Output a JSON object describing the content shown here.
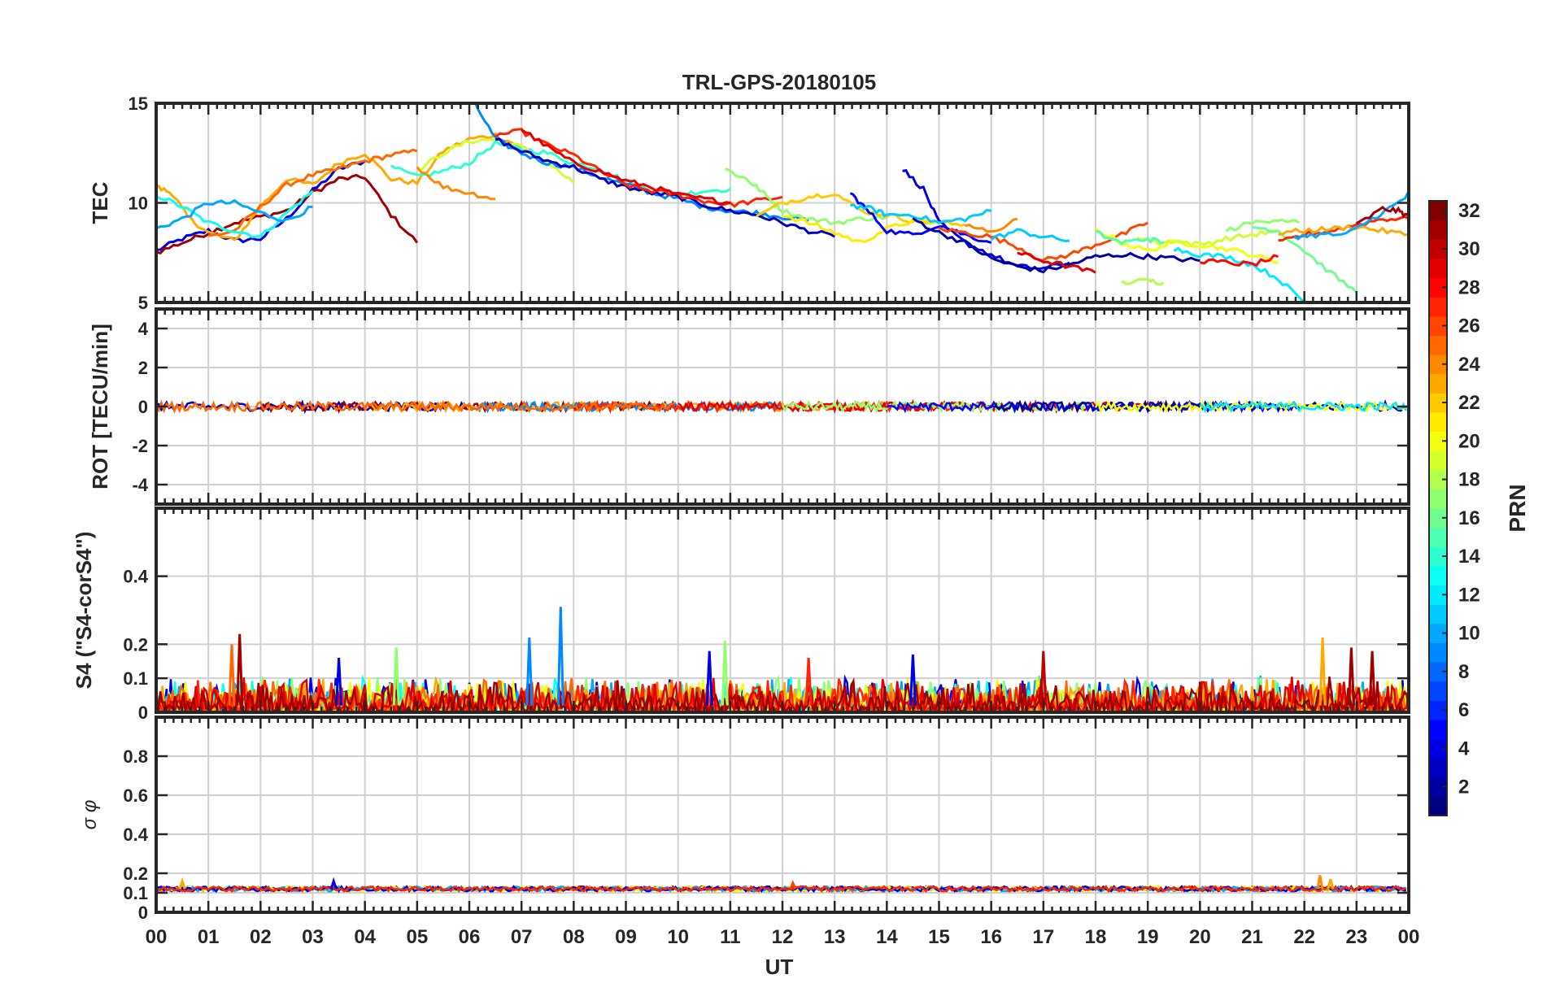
{
  "figure_title": "TRL-GPS-20180105",
  "x_axis": {
    "label": "UT",
    "range_hours": [
      0,
      24
    ],
    "tick_labels": [
      "00",
      "01",
      "02",
      "03",
      "04",
      "05",
      "06",
      "07",
      "08",
      "09",
      "10",
      "11",
      "12",
      "13",
      "14",
      "15",
      "16",
      "17",
      "18",
      "19",
      "20",
      "21",
      "22",
      "23",
      "00"
    ]
  },
  "colorbar": {
    "label": "PRN",
    "range": [
      1,
      32
    ],
    "tick_labels": [
      "2",
      "4",
      "6",
      "8",
      "10",
      "12",
      "14",
      "16",
      "18",
      "20",
      "22",
      "24",
      "26",
      "28",
      "30",
      "32"
    ],
    "colormap": "jet"
  },
  "chart_data": [
    {
      "type": "line",
      "panel": "TEC",
      "ylabel": "TEC",
      "ylim": [
        5,
        15
      ],
      "ytick_labels": [
        "5",
        "10",
        "15"
      ],
      "grid": true,
      "series": [
        {
          "color_index": 4,
          "x": [
            0,
            0.5,
            1,
            1.5,
            2,
            2.5,
            3,
            3.5,
            4
          ],
          "y": [
            7.6,
            8.2,
            8.6,
            8.1,
            8.2,
            9.2,
            10.6,
            11.7,
            12.1
          ]
        },
        {
          "color_index": 31,
          "x": [
            0,
            0.5,
            1,
            1.5,
            2,
            2.5,
            3,
            3.5,
            4,
            4.5,
            5
          ],
          "y": [
            7.5,
            8.0,
            8.5,
            9.0,
            9.3,
            9.6,
            10.5,
            11.2,
            11.3,
            9.4,
            8.0
          ]
        },
        {
          "color_index": 23,
          "x": [
            0,
            0.3,
            0.6,
            1,
            1.5,
            2,
            2.5,
            3,
            3.5,
            4,
            4.5,
            5,
            5.5,
            6,
            6.5,
            7
          ],
          "y": [
            10.8,
            10.5,
            9.3,
            8.5,
            8.1,
            9.8,
            11.2,
            10.9,
            12.0,
            12.5,
            11.2,
            11.0,
            12.6,
            13.2,
            13.4,
            12.8
          ]
        },
        {
          "color_index": 25,
          "x": [
            1,
            1.5,
            2,
            2.5,
            3,
            3.5,
            4,
            4.5,
            5
          ],
          "y": [
            8.3,
            8.6,
            9.8,
            10.9,
            11.4,
            11.7,
            12.1,
            12.4,
            12.6
          ]
        },
        {
          "color_index": 13,
          "x": [
            0,
            0.5,
            1,
            1.5,
            2,
            2.5,
            3
          ],
          "y": [
            10.4,
            9.8,
            9.0,
            8.6,
            8.3,
            9.5,
            10.6
          ]
        },
        {
          "color_index": 10,
          "x": [
            0,
            0.5,
            1,
            1.5,
            2,
            2.5,
            3
          ],
          "y": [
            8.7,
            9.2,
            10.0,
            10.0,
            9.5,
            9.1,
            9.8
          ]
        },
        {
          "color_index": 14,
          "x": [
            4.5,
            5,
            5.5,
            6,
            6.5,
            7,
            7.5,
            8,
            8.5,
            9,
            9.5,
            10,
            10.5,
            11
          ],
          "y": [
            11.8,
            11.3,
            11.6,
            12.0,
            13.0,
            12.7,
            12.5,
            12.0,
            11.7,
            11.1,
            10.6,
            10.4,
            10.6,
            10.7
          ]
        },
        {
          "color_index": 19,
          "x": [
            5,
            5.5,
            6,
            6.5,
            7,
            7.5,
            8
          ],
          "y": [
            11.6,
            12.5,
            13.1,
            13.2,
            12.8,
            12.0,
            11.0
          ]
        },
        {
          "color_index": 9,
          "x": [
            6.1,
            6.5,
            7,
            7.5,
            8,
            8.5,
            9,
            9.5,
            10,
            10.5,
            11,
            11.5,
            12,
            12.5
          ],
          "y": [
            15.0,
            13.2,
            12.5,
            12.0,
            11.8,
            11.3,
            10.9,
            10.5,
            10.2,
            9.8,
            9.6,
            9.5,
            9.3,
            9.1
          ]
        },
        {
          "color_index": 3,
          "x": [
            6.5,
            7,
            7.5,
            8,
            8.5,
            9,
            9.5,
            10,
            10.5,
            11,
            11.5,
            12,
            12.5,
            13
          ],
          "y": [
            13.2,
            12.6,
            12.1,
            11.8,
            11.2,
            10.8,
            10.5,
            10.3,
            9.9,
            9.6,
            9.4,
            9.0,
            8.6,
            8.3
          ]
        },
        {
          "color_index": 27,
          "x": [
            6.5,
            7,
            7.5,
            8,
            8.5,
            9,
            9.5,
            10,
            10.5,
            11,
            11.5,
            12
          ],
          "y": [
            13.4,
            13.6,
            12.9,
            12.4,
            11.6,
            10.9,
            10.6,
            10.4,
            10.1,
            9.9,
            10.1,
            10.3
          ]
        },
        {
          "color_index": 29,
          "x": [
            7,
            7.5,
            8,
            8.5,
            9,
            9.5,
            10,
            10.5,
            11
          ],
          "y": [
            13.7,
            12.8,
            12.0,
            11.6,
            11.1,
            10.8,
            10.4,
            10.2,
            10.0
          ]
        },
        {
          "color_index": 24,
          "x": [
            5,
            5.5,
            6,
            6.5
          ],
          "y": [
            11.8,
            10.8,
            10.5,
            10.2
          ]
        },
        {
          "color_index": 17,
          "x": [
            10.9,
            11.3,
            11.5,
            11.8,
            12,
            12.5,
            13,
            13.5,
            14
          ],
          "y": [
            11.7,
            11.2,
            10.8,
            10.1,
            9.6,
            9.2,
            9.0,
            9.2,
            9.3
          ]
        },
        {
          "color_index": 22,
          "x": [
            11.5,
            12,
            12.5,
            13,
            13.5,
            14,
            14.5,
            15,
            15.5
          ],
          "y": [
            9.3,
            10.0,
            10.3,
            10.5,
            9.6,
            9.4,
            9.1,
            9.0,
            8.9
          ]
        },
        {
          "color_index": 21,
          "x": [
            12,
            12.5,
            13,
            13.5,
            14,
            14.5,
            15
          ],
          "y": [
            9.4,
            9.0,
            8.5,
            8.0,
            8.7,
            9.1,
            9.0
          ]
        },
        {
          "color_index": 5,
          "x": [
            13.3,
            13.6,
            14,
            14.5,
            15,
            15.5,
            16
          ],
          "y": [
            10.5,
            9.7,
            8.6,
            8.4,
            8.9,
            8.4,
            8.0
          ]
        },
        {
          "color_index": 4,
          "x": [
            14.3,
            14.7,
            15,
            15.5,
            16,
            16.5,
            17,
            17.5
          ],
          "y": [
            11.7,
            10.7,
            9.0,
            8.0,
            7.4,
            6.8,
            6.7,
            7.0
          ]
        },
        {
          "color_index": 11,
          "x": [
            13.3,
            13.7,
            14,
            14.5,
            15,
            15.5,
            16
          ],
          "y": [
            9.9,
            9.7,
            9.4,
            9.4,
            9.0,
            9.2,
            9.6
          ]
        },
        {
          "color_index": 2,
          "x": [
            14.5,
            15,
            15.5,
            16,
            16.5,
            17,
            17.5,
            18,
            18.5,
            19,
            19.5,
            20
          ],
          "y": [
            9.2,
            8.5,
            8.0,
            7.2,
            6.8,
            6.6,
            6.9,
            7.3,
            7.4,
            7.3,
            7.2,
            7.1
          ]
        },
        {
          "color_index": 26,
          "x": [
            15,
            15.5,
            16,
            16.5,
            17,
            17.5,
            18,
            18.5,
            19
          ],
          "y": [
            8.7,
            8.5,
            8.3,
            7.8,
            7.1,
            7.4,
            7.9,
            8.4,
            9.0
          ]
        },
        {
          "color_index": 24,
          "x": [
            15.5,
            16,
            16.5
          ],
          "y": [
            8.9,
            8.5,
            9.2
          ]
        },
        {
          "color_index": 11,
          "x": [
            16,
            16.5,
            17,
            17.5
          ],
          "y": [
            8.2,
            8.6,
            8.3,
            8.1
          ]
        },
        {
          "color_index": 29,
          "x": [
            16.5,
            17,
            17.5,
            18
          ],
          "y": [
            7.5,
            7.1,
            6.8,
            6.5
          ]
        },
        {
          "color_index": 20,
          "x": [
            18,
            18.5,
            19,
            19.5,
            20,
            20.5,
            21,
            21.5
          ],
          "y": [
            8.7,
            8.0,
            7.6,
            8.0,
            7.9,
            7.7,
            7.4,
            7.0
          ]
        },
        {
          "color_index": 19,
          "x": [
            18.8,
            19.2,
            19.5,
            20,
            20.5,
            21,
            21.5
          ],
          "y": [
            8.3,
            8.0,
            8.1,
            7.9,
            8.2,
            8.4,
            8.6
          ]
        },
        {
          "color_index": 15,
          "x": [
            18,
            18.5,
            19,
            19.3
          ],
          "y": [
            8.5,
            8.0,
            8.2,
            8.0
          ]
        },
        {
          "color_index": 18,
          "x": [
            18.5,
            19,
            19.3
          ],
          "y": [
            6.0,
            6.1,
            6.0
          ]
        },
        {
          "color_index": 12,
          "x": [
            19.5,
            20,
            20.5,
            21,
            21.5,
            22
          ],
          "y": [
            7.7,
            7.4,
            7.3,
            6.9,
            6.2,
            5.0
          ]
        },
        {
          "color_index": 16,
          "x": [
            21,
            21.5,
            22,
            22.5,
            23
          ],
          "y": [
            8.8,
            8.6,
            7.6,
            6.5,
            5.5
          ]
        },
        {
          "color_index": 28,
          "x": [
            20,
            20.5,
            21,
            21.5
          ],
          "y": [
            7.1,
            7.0,
            6.9,
            7.3
          ]
        },
        {
          "color_index": 27,
          "x": [
            21.5,
            22,
            22.5,
            23,
            23.5,
            24
          ],
          "y": [
            8.0,
            8.4,
            8.6,
            8.9,
            9.2,
            9.2
          ]
        },
        {
          "color_index": 23,
          "x": [
            21.5,
            22,
            22.5,
            23,
            23.5,
            24
          ],
          "y": [
            8.5,
            8.6,
            8.7,
            8.8,
            8.6,
            8.4
          ]
        },
        {
          "color_index": 10,
          "x": [
            21.8,
            22.3,
            22.8,
            23.3,
            23.8,
            24
          ],
          "y": [
            8.3,
            8.4,
            8.4,
            9.2,
            10.0,
            10.4
          ]
        },
        {
          "color_index": 31,
          "x": [
            23,
            23.5,
            23.8,
            24
          ],
          "y": [
            8.9,
            9.7,
            9.6,
            9.3
          ]
        },
        {
          "color_index": 17,
          "x": [
            20.5,
            21,
            21.5,
            21.9
          ],
          "y": [
            8.6,
            9.0,
            9.2,
            9.0
          ]
        }
      ]
    },
    {
      "type": "line",
      "panel": "ROT",
      "ylabel": "ROT [TECU/min]",
      "ylim": [
        -5,
        5
      ],
      "ytick_labels": [
        "-4",
        "-2",
        "0",
        "2",
        "4"
      ],
      "grid": true,
      "values_range": [
        -0.3,
        0.3
      ]
    },
    {
      "type": "line",
      "panel": "S4",
      "ylabel": "S4 (\"S4-corS4\")",
      "ylim": [
        0,
        0.6
      ],
      "ytick_labels": [
        "0",
        "0.1",
        "0.2",
        "0.4"
      ],
      "grid": true,
      "background_range": [
        0.0,
        0.1
      ],
      "spikes": [
        {
          "x": 1.6,
          "y": 0.23,
          "color_index": 31
        },
        {
          "x": 1.45,
          "y": 0.2,
          "color_index": 25
        },
        {
          "x": 7.15,
          "y": 0.22,
          "color_index": 9
        },
        {
          "x": 7.75,
          "y": 0.31,
          "color_index": 9
        },
        {
          "x": 10.9,
          "y": 0.21,
          "color_index": 17
        },
        {
          "x": 4.6,
          "y": 0.19,
          "color_index": 17
        },
        {
          "x": 3.5,
          "y": 0.16,
          "color_index": 4
        },
        {
          "x": 14.5,
          "y": 0.17,
          "color_index": 4
        },
        {
          "x": 17.0,
          "y": 0.18,
          "color_index": 30
        },
        {
          "x": 22.35,
          "y": 0.22,
          "color_index": 23
        },
        {
          "x": 22.9,
          "y": 0.19,
          "color_index": 31
        },
        {
          "x": 23.3,
          "y": 0.18,
          "color_index": 31
        },
        {
          "x": 10.6,
          "y": 0.18,
          "color_index": 4
        },
        {
          "x": 12.5,
          "y": 0.16,
          "color_index": 27
        }
      ]
    },
    {
      "type": "line",
      "panel": "sigma_phi",
      "ylabel": "σ φ",
      "ylim": [
        0,
        1
      ],
      "ytick_labels": [
        "0",
        "0.1",
        "0.2",
        "0.4",
        "0.6",
        "0.8"
      ],
      "grid": true,
      "baseline": 0.12,
      "spikes": [
        {
          "x": 22.3,
          "y": 0.19,
          "color_index": 24
        },
        {
          "x": 22.5,
          "y": 0.17,
          "color_index": 23
        },
        {
          "x": 3.4,
          "y": 0.16,
          "color_index": 4
        },
        {
          "x": 0.5,
          "y": 0.16,
          "color_index": 23
        },
        {
          "x": 12.2,
          "y": 0.15,
          "color_index": 26
        }
      ]
    }
  ]
}
